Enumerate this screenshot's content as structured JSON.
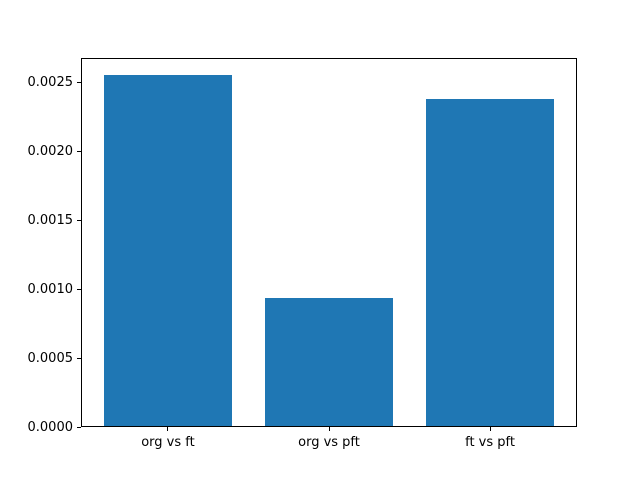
{
  "chart_data": {
    "type": "bar",
    "title": "",
    "xlabel": "",
    "ylabel": "",
    "categories": [
      "org vs ft",
      "org vs pft",
      "ft vs pft"
    ],
    "values": [
      0.00255,
      0.00093,
      0.00237
    ],
    "ylim": [
      0,
      0.0026775
    ],
    "yticks": [
      0.0,
      0.0005,
      0.001,
      0.0015,
      0.002,
      0.0025
    ],
    "ytick_labels": [
      "0.0000",
      "0.0005",
      "0.0010",
      "0.0015",
      "0.0020",
      "0.0025"
    ],
    "bar_color": "#1f77b4",
    "bar_width_units": 0.8,
    "x_margin_fraction": 0.05,
    "grid": false,
    "legend_position": "none",
    "background_color": "#ffffff",
    "spine_color": "#000000"
  }
}
